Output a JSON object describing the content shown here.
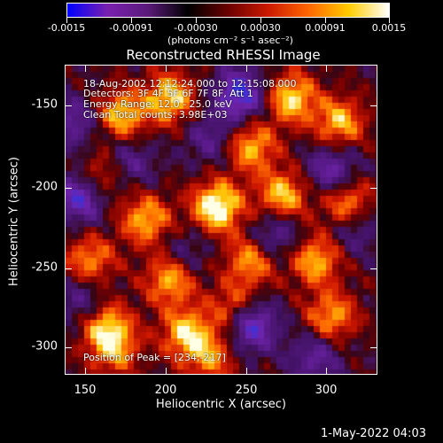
{
  "colorbar": {
    "tick_labels": [
      "-0.0015",
      "-0.00091",
      "-0.00030",
      "0.00030",
      "0.00091",
      "0.0015"
    ],
    "units": "(photons cm⁻² s⁻¹ asec⁻²)",
    "colors": [
      "#0000ff",
      "#7a20b0",
      "#5b1a7a",
      "#000000",
      "#6a0000",
      "#cc1a00",
      "#ff6600",
      "#ffcc00",
      "#ffffff"
    ]
  },
  "plot": {
    "title": "Reconstructed RHESSI Image",
    "info_lines": [
      "18-Aug-2002 12:12:24.000 to 12:15:08.000",
      "Detectors: 3F 4F 5F 6F 7F 8F, Att 1",
      "Energy Range: 12.0 - 25.0 keV",
      "Clean    Total counts: 3.98E+03"
    ],
    "peak_text": "Position of Peak = [234,-217]",
    "x_axis_label": "Heliocentric X (arcsec)",
    "y_axis_label": "Heliocentric Y (arcsec)",
    "x_tick_labels": [
      "150",
      "200",
      "250",
      "300"
    ],
    "y_tick_labels": [
      "-150",
      "-200",
      "-250",
      "-300"
    ]
  },
  "timestamp": "1-May-2022 04:03",
  "chart_data": {
    "type": "heatmap",
    "title": "Reconstructed RHESSI Image",
    "xlabel": "Heliocentric X (arcsec)",
    "ylabel": "Heliocentric Y (arcsec)",
    "xlim": [
      140,
      333
    ],
    "ylim": [
      -320,
      -130
    ],
    "colorbar_range": [
      -0.0015,
      0.0015
    ],
    "x_ticks": [
      150,
      200,
      250,
      300
    ],
    "y_ticks": [
      -150,
      -200,
      -250,
      -300
    ],
    "peak": [
      234,
      -217
    ],
    "hotspots": [
      {
        "x": 234,
        "y": -217,
        "intensity": 1.0
      },
      {
        "x": 175,
        "y": -160,
        "intensity": 0.75
      },
      {
        "x": 205,
        "y": -150,
        "intensity": 0.8
      },
      {
        "x": 255,
        "y": -180,
        "intensity": 0.7
      },
      {
        "x": 280,
        "y": -150,
        "intensity": 0.8
      },
      {
        "x": 310,
        "y": -165,
        "intensity": 0.7
      },
      {
        "x": 160,
        "y": -200,
        "intensity": 0.6
      },
      {
        "x": 190,
        "y": -225,
        "intensity": 0.7
      },
      {
        "x": 275,
        "y": -210,
        "intensity": 0.75
      },
      {
        "x": 315,
        "y": -215,
        "intensity": 0.7
      },
      {
        "x": 155,
        "y": -250,
        "intensity": 0.6
      },
      {
        "x": 205,
        "y": -262,
        "intensity": 0.7
      },
      {
        "x": 255,
        "y": -250,
        "intensity": 0.65
      },
      {
        "x": 295,
        "y": -250,
        "intensity": 0.7
      },
      {
        "x": 165,
        "y": -290,
        "intensity": 0.65
      },
      {
        "x": 215,
        "y": -295,
        "intensity": 0.75
      },
      {
        "x": 245,
        "y": -280,
        "intensity": 0.6
      },
      {
        "x": 305,
        "y": -285,
        "intensity": 0.65
      },
      {
        "x": 170,
        "y": -305,
        "intensity": 0.6
      },
      {
        "x": 230,
        "y": -310,
        "intensity": 0.55
      }
    ],
    "negative_regions": [
      {
        "x": 145,
        "y": -165,
        "intensity": -0.5
      },
      {
        "x": 150,
        "y": -210,
        "intensity": -0.9
      },
      {
        "x": 180,
        "y": -190,
        "intensity": -0.4
      },
      {
        "x": 230,
        "y": -175,
        "intensity": -0.4
      },
      {
        "x": 248,
        "y": -148,
        "intensity": -0.9
      },
      {
        "x": 270,
        "y": -235,
        "intensity": -0.5
      },
      {
        "x": 305,
        "y": -195,
        "intensity": -0.6
      },
      {
        "x": 320,
        "y": -230,
        "intensity": -0.4
      },
      {
        "x": 215,
        "y": -245,
        "intensity": -0.3
      },
      {
        "x": 255,
        "y": -290,
        "intensity": -0.9
      },
      {
        "x": 295,
        "y": -310,
        "intensity": -0.5
      },
      {
        "x": 150,
        "y": -275,
        "intensity": -0.4
      }
    ]
  }
}
